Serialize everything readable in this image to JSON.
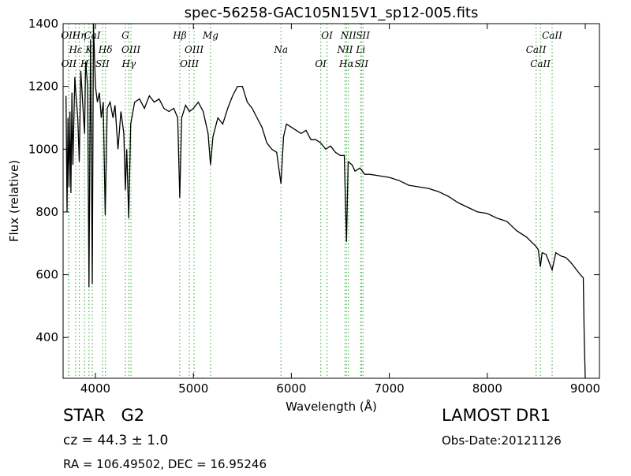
{
  "chart_data": {
    "type": "line",
    "title": "spec-56258-GAC105N15V1_sp12-005.fits",
    "x_label": "Wavelength (Å)",
    "y_label": "Flux (relative)",
    "xlim": [
      3670,
      9145
    ],
    "ylim": [
      270,
      1400
    ],
    "xticks": [
      4000,
      5000,
      6000,
      7000,
      8000,
      9000
    ],
    "yticks": [
      400,
      600,
      800,
      1000,
      1200,
      1400
    ],
    "line_color": "#000000",
    "marker_color": "#55bb55",
    "spectral_lines": [
      {
        "label": "OII",
        "wavelength": 3727
      },
      {
        "label": "Hε",
        "wavelength": 3798
      },
      {
        "label": "OII",
        "wavelength": 3729
      },
      {
        "label": "Hη",
        "wavelength": 3835
      },
      {
        "label": "K",
        "wavelength": 3934
      },
      {
        "label": "H",
        "wavelength": 3889
      },
      {
        "label": "CaI",
        "wavelength": 3968
      },
      {
        "label": "Hδ",
        "wavelength": 4102
      },
      {
        "label": "SII",
        "wavelength": 4072
      },
      {
        "label": "G",
        "wavelength": 4305
      },
      {
        "label": "OIII",
        "wavelength": 4363
      },
      {
        "label": "Hγ",
        "wavelength": 4341
      },
      {
        "label": "Hβ",
        "wavelength": 4861
      },
      {
        "label": "OIII",
        "wavelength": 5007
      },
      {
        "label": "OIII",
        "wavelength": 4959
      },
      {
        "label": "Mg",
        "wavelength": 5175
      },
      {
        "label": "Na",
        "wavelength": 5894
      },
      {
        "label": "OI",
        "wavelength": 6300
      },
      {
        "label": "OI",
        "wavelength": 6364
      },
      {
        "label": "NII",
        "wavelength": 6548
      },
      {
        "label": "Hα",
        "wavelength": 6563
      },
      {
        "label": "NII",
        "wavelength": 6583
      },
      {
        "label": "Li",
        "wavelength": 6708
      },
      {
        "label": "SII",
        "wavelength": 6716
      },
      {
        "label": "SII",
        "wavelength": 6731
      },
      {
        "label": "CaII",
        "wavelength": 8498
      },
      {
        "label": "CaII",
        "wavelength": 8542
      },
      {
        "label": "CaII",
        "wavelength": 8662
      }
    ],
    "x": [
      3700,
      3710,
      3720,
      3730,
      3740,
      3750,
      3760,
      3770,
      3790,
      3800,
      3820,
      3835,
      3850,
      3870,
      3889,
      3900,
      3920,
      3934,
      3950,
      3968,
      3980,
      4000,
      4020,
      4040,
      4060,
      4080,
      4100,
      4120,
      4150,
      4180,
      4200,
      4230,
      4260,
      4290,
      4305,
      4320,
      4340,
      4360,
      4400,
      4450,
      4500,
      4550,
      4600,
      4650,
      4700,
      4750,
      4800,
      4840,
      4861,
      4880,
      4920,
      4960,
      5000,
      5050,
      5100,
      5150,
      5175,
      5200,
      5250,
      5300,
      5350,
      5400,
      5450,
      5500,
      5550,
      5600,
      5650,
      5700,
      5750,
      5800,
      5850,
      5894,
      5920,
      5950,
      6000,
      6050,
      6100,
      6150,
      6200,
      6250,
      6300,
      6350,
      6400,
      6450,
      6500,
      6540,
      6563,
      6580,
      6620,
      6650,
      6700,
      6750,
      6800,
      6900,
      7000,
      7100,
      7200,
      7300,
      7400,
      7500,
      7600,
      7700,
      7800,
      7900,
      8000,
      8100,
      8200,
      8300,
      8400,
      8498,
      8520,
      8542,
      8560,
      8600,
      8662,
      8700,
      8750,
      8800,
      8850,
      8900,
      8950,
      8980,
      8990,
      9000
    ],
    "values": [
      1170,
      800,
      1100,
      880,
      1120,
      860,
      1180,
      950,
      1230,
      1180,
      1100,
      960,
      1250,
      1150,
      1050,
      1280,
      1200,
      560,
      1350,
      570,
      1400,
      1200,
      1150,
      1180,
      1100,
      1150,
      790,
      1130,
      1150,
      1100,
      1140,
      1000,
      1120,
      1050,
      870,
      1000,
      780,
      1080,
      1150,
      1160,
      1130,
      1170,
      1150,
      1160,
      1130,
      1120,
      1130,
      1100,
      845,
      1100,
      1140,
      1120,
      1130,
      1150,
      1120,
      1050,
      950,
      1040,
      1100,
      1080,
      1130,
      1170,
      1200,
      1200,
      1150,
      1130,
      1100,
      1070,
      1020,
      1000,
      990,
      890,
      1040,
      1080,
      1070,
      1060,
      1050,
      1060,
      1030,
      1030,
      1020,
      1000,
      1010,
      990,
      980,
      980,
      705,
      960,
      950,
      930,
      940,
      920,
      920,
      915,
      910,
      900,
      885,
      880,
      875,
      865,
      850,
      830,
      815,
      800,
      795,
      780,
      770,
      740,
      720,
      690,
      680,
      625,
      670,
      665,
      615,
      670,
      660,
      655,
      640,
      620,
      600,
      590,
      400,
      270
    ]
  },
  "footer": {
    "object": "STAR   G2",
    "survey": "LAMOST DR1",
    "redshift": "cz = 44.3 ± 1.0",
    "obs_date": "Obs-Date:20121126",
    "coords": "RA = 106.49502, DEC = 16.95246"
  }
}
